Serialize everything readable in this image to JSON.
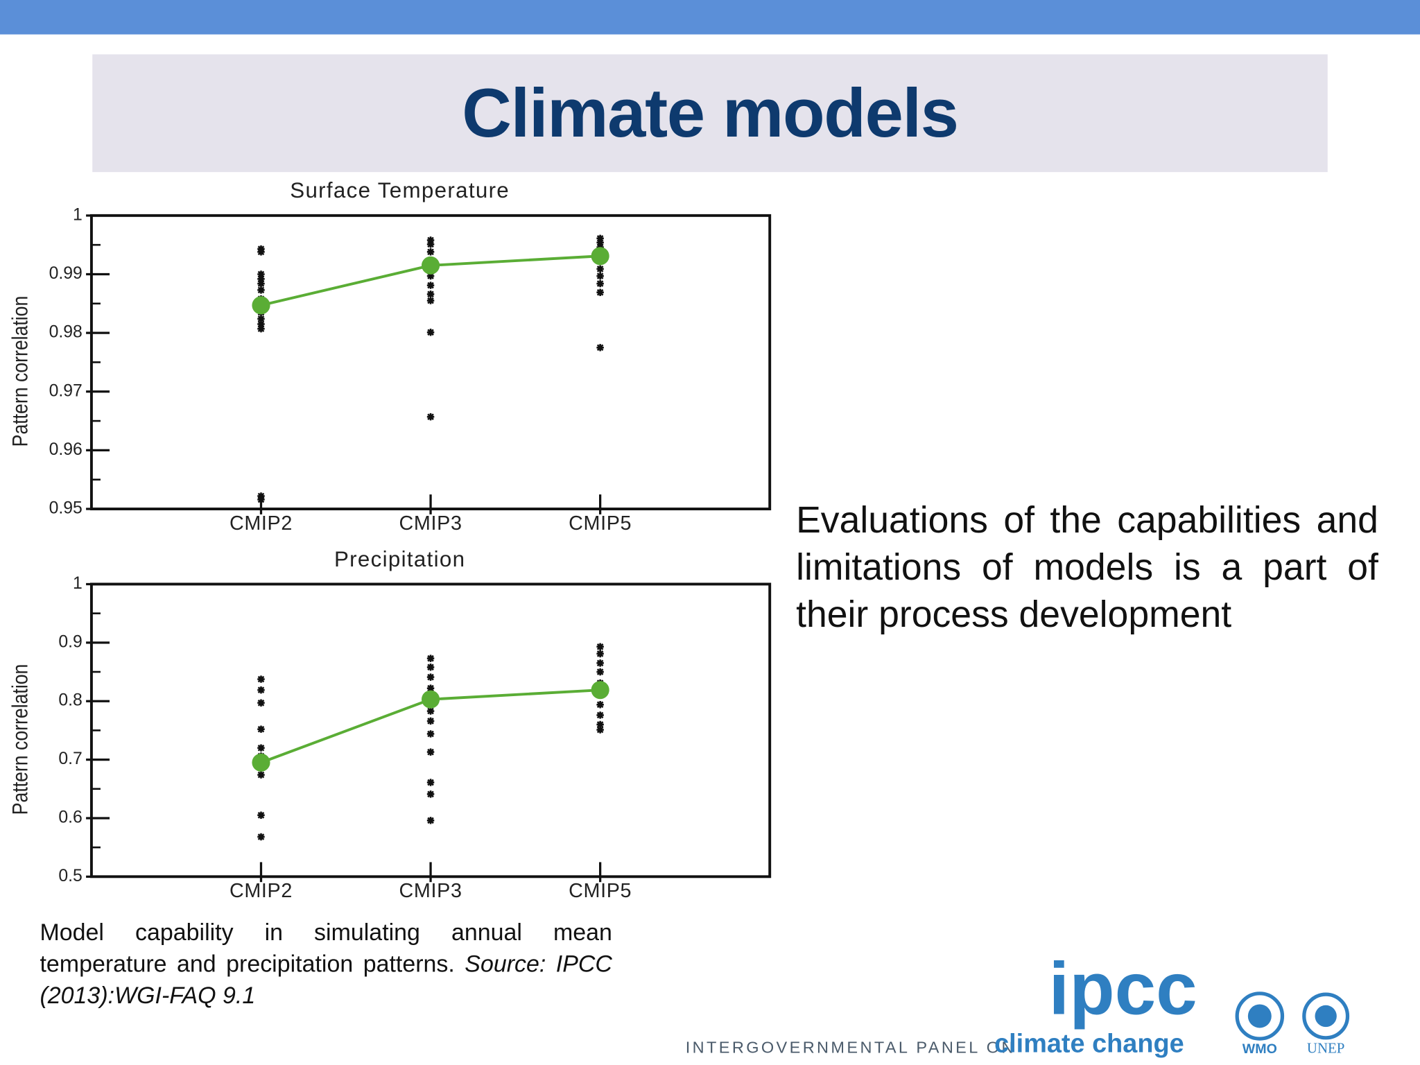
{
  "slide": {
    "title": "Climate models",
    "body": "Evaluations of the capabilities and limitations of models is a part of their process development",
    "caption": {
      "text": "Model capability in simulating annual mean temperature and precipitation patterns.",
      "source": "Source: IPCC (2013):WGI-FAQ 9.1"
    },
    "logo": {
      "ipcc": "ipcc",
      "panel": "INTERGOVERNMENTAL PANEL ON",
      "climate": "climate change",
      "wmo": "WMO",
      "unep": "UNEP"
    }
  },
  "chart_data": [
    {
      "type": "dot",
      "title": "Surface Temperature",
      "ylabel": "Pattern correlation",
      "categories": [
        "CMIP2",
        "CMIP3",
        "CMIP5"
      ],
      "points": [
        [
          0.9943,
          0.9938,
          0.99,
          0.9892,
          0.9884,
          0.9873,
          0.9858,
          0.9847,
          0.9835,
          0.9824,
          0.9815,
          0.9807,
          0.9522,
          0.9516
        ],
        [
          0.9958,
          0.9951,
          0.9938,
          0.9923,
          0.9912,
          0.9897,
          0.9881,
          0.9866,
          0.9855,
          0.9801,
          0.9657
        ],
        [
          0.9961,
          0.9954,
          0.9946,
          0.9935,
          0.9923,
          0.9909,
          0.9897,
          0.9884,
          0.9869,
          0.9775
        ]
      ],
      "values": [
        0.9847,
        0.9915,
        0.9931
      ],
      "color": "#5aad35",
      "point_color": "#111111",
      "ylim": [
        0.95,
        1
      ],
      "yticks": [
        0.95,
        0.96,
        0.97,
        0.98,
        0.99,
        1
      ],
      "yminorticks": [
        0.955,
        0.965,
        0.975,
        0.985,
        0.995
      ]
    },
    {
      "type": "dot",
      "title": "Precipitation",
      "ylabel": "Pattern correlation",
      "categories": [
        "CMIP2",
        "CMIP3",
        "CMIP5"
      ],
      "points": [
        [
          0.8375,
          0.819,
          0.797,
          0.752,
          0.72,
          0.706,
          0.686,
          0.674,
          0.605,
          0.568
        ],
        [
          0.873,
          0.858,
          0.841,
          0.822,
          0.803,
          0.783,
          0.766,
          0.744,
          0.713,
          0.661,
          0.641,
          0.596
        ],
        [
          0.893,
          0.881,
          0.865,
          0.85,
          0.831,
          0.814,
          0.794,
          0.776,
          0.76,
          0.751
        ]
      ],
      "values": [
        0.695,
        0.803,
        0.819
      ],
      "color": "#5aad35",
      "point_color": "#111111",
      "ylim": [
        0.5,
        1
      ],
      "yticks": [
        0.5,
        0.6,
        0.7,
        0.8,
        0.9,
        1
      ],
      "yminorticks": [
        0.55,
        0.65,
        0.75,
        0.85,
        0.95
      ]
    }
  ]
}
